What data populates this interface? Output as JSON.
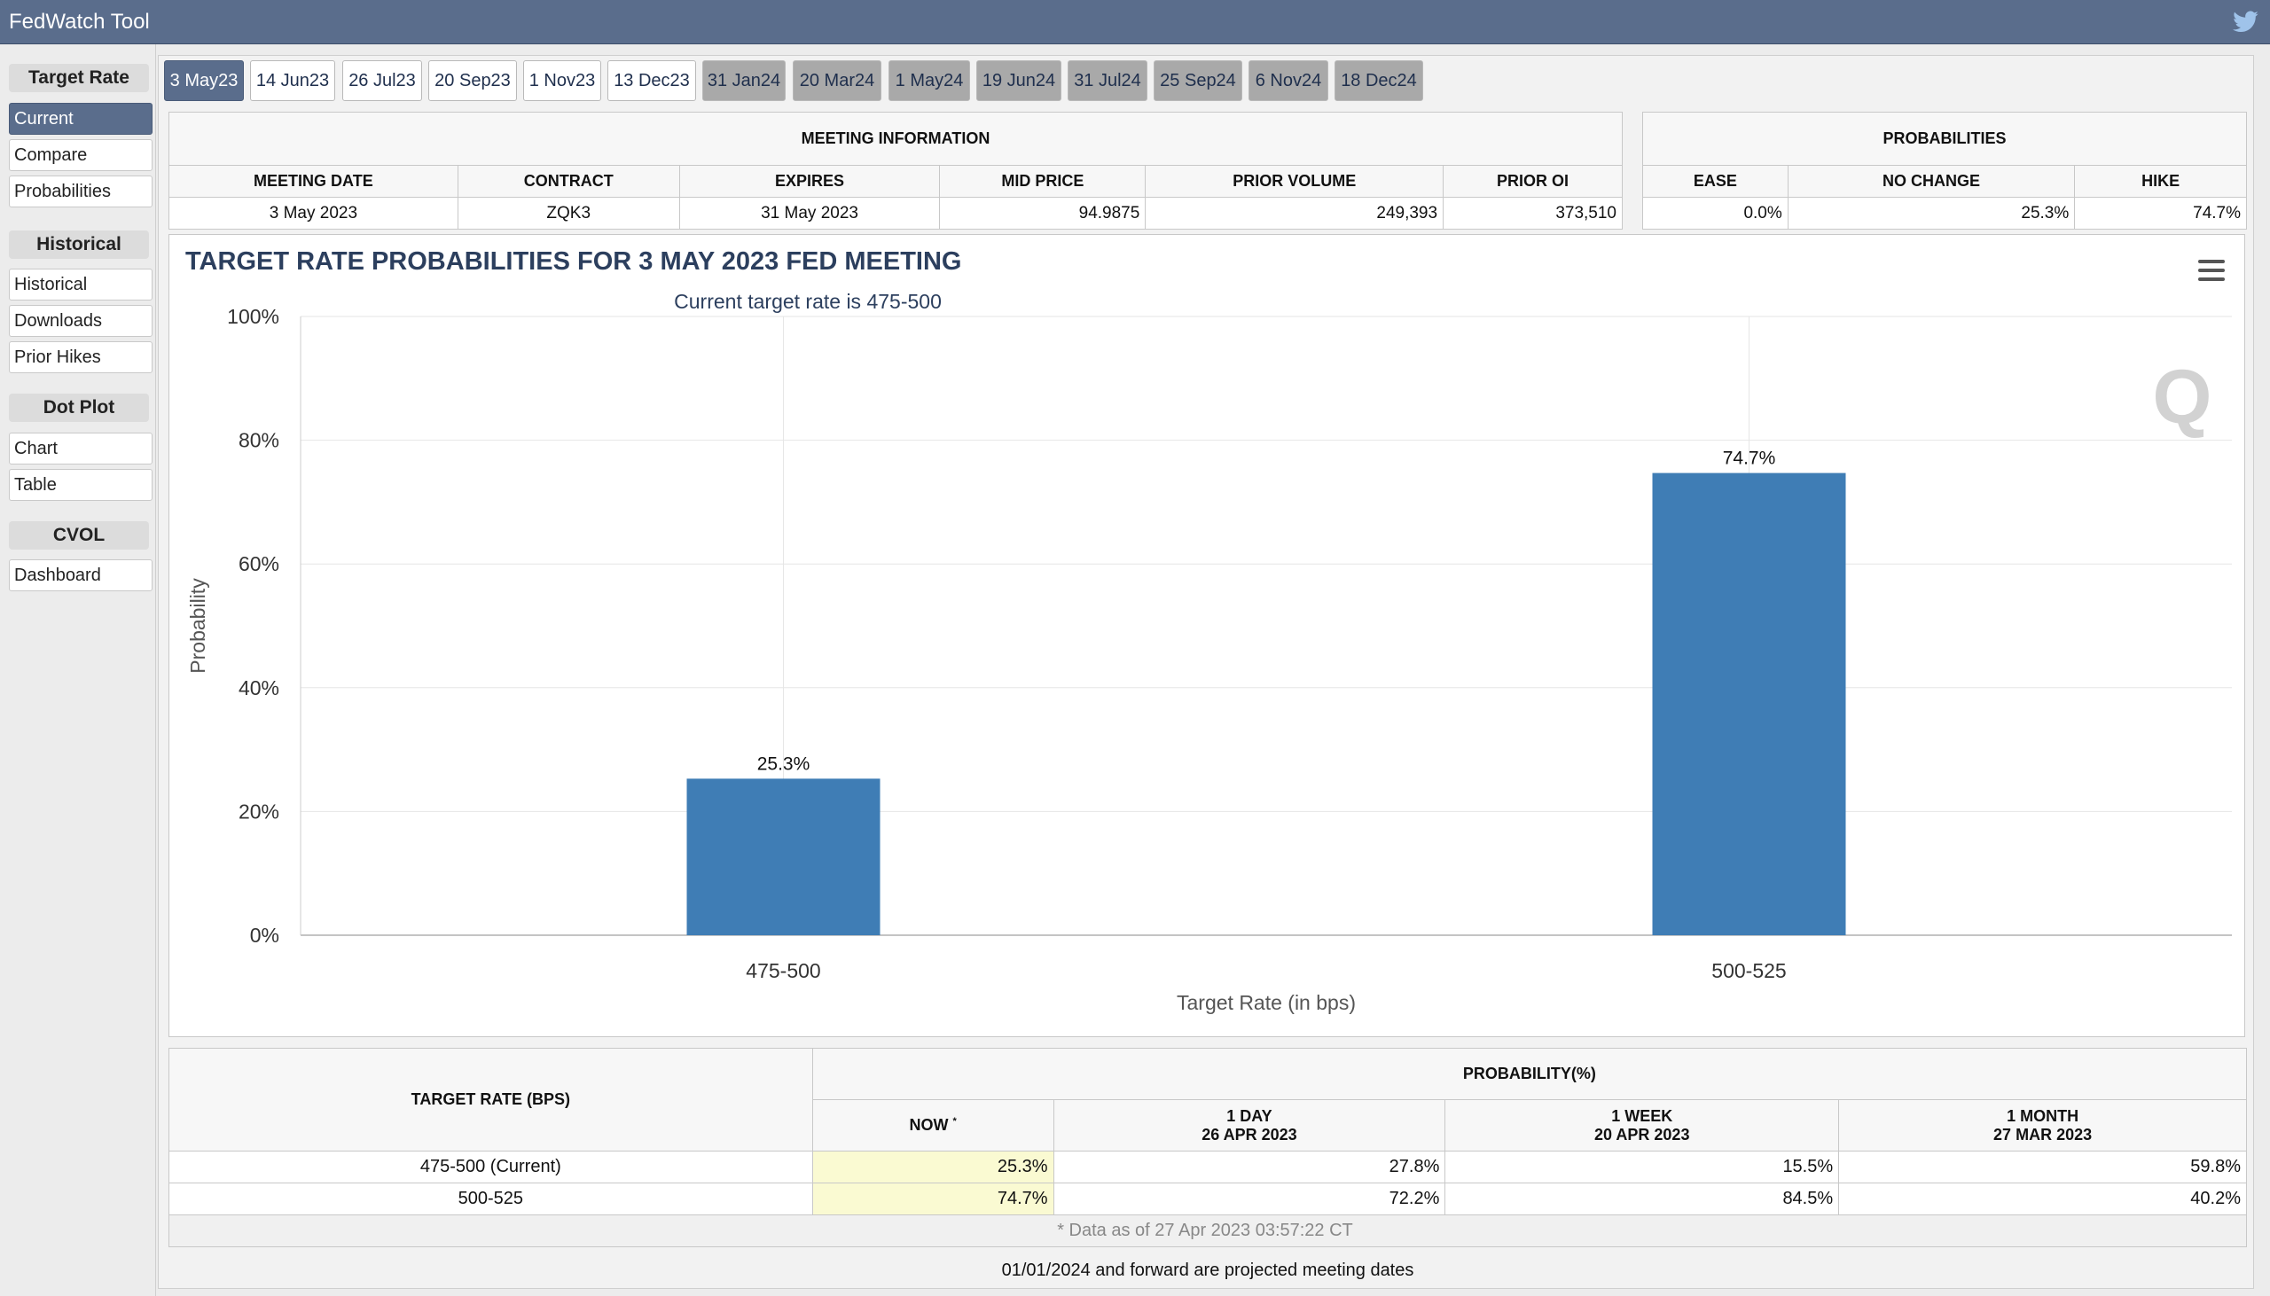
{
  "app": {
    "title": "FedWatch Tool",
    "twitter_icon": "twitter-bird-icon"
  },
  "sidebar": {
    "sections": [
      {
        "heading": "Target Rate",
        "items": [
          "Current",
          "Compare",
          "Probabilities"
        ]
      },
      {
        "heading": "Historical",
        "items": [
          "Historical",
          "Downloads",
          "Prior Hikes"
        ]
      },
      {
        "heading": "Dot Plot",
        "items": [
          "Chart",
          "Table"
        ]
      },
      {
        "heading": "CVOL",
        "items": [
          "Dashboard"
        ]
      }
    ],
    "active_item": "Current"
  },
  "tabs": [
    "3 May23",
    "14 Jun23",
    "26 Jul23",
    "20 Sep23",
    "1 Nov23",
    "13 Dec23",
    "31 Jan24",
    "20 Mar24",
    "1 May24",
    "19 Jun24",
    "31 Jul24",
    "25 Sep24",
    "6 Nov24",
    "18 Dec24"
  ],
  "active_tab": "3 May23",
  "meeting_info": {
    "heading": "MEETING INFORMATION",
    "columns": [
      "MEETING DATE",
      "CONTRACT",
      "EXPIRES",
      "MID PRICE",
      "PRIOR VOLUME",
      "PRIOR OI"
    ],
    "row": [
      "3 May 2023",
      "ZQK3",
      "31 May 2023",
      "94.9875",
      "249,393",
      "373,510"
    ]
  },
  "probabilities": {
    "heading": "PROBABILITIES",
    "columns": [
      "EASE",
      "NO CHANGE",
      "HIKE"
    ],
    "row": [
      "0.0%",
      "25.3%",
      "74.7%"
    ]
  },
  "chart": {
    "title": "TARGET RATE PROBABILITIES FOR 3 MAY 2023 FED MEETING",
    "subtitle": "Current target rate is 475-500",
    "menu_icon": "hamburger-menu-icon",
    "watermark": "Q"
  },
  "chart_data": {
    "type": "bar",
    "title": "TARGET RATE PROBABILITIES FOR 3 MAY 2023 FED MEETING",
    "subtitle": "Current target rate is 475-500",
    "categories": [
      "475-500",
      "500-525"
    ],
    "values": [
      25.3,
      74.7
    ],
    "data_labels": [
      "25.3%",
      "74.7%"
    ],
    "xlabel": "Target Rate (in bps)",
    "ylabel": "Probability",
    "ylim": [
      0,
      100
    ],
    "yticks": [
      "0%",
      "20%",
      "40%",
      "60%",
      "80%",
      "100%"
    ],
    "grid": true,
    "bar_color": "#3f7db5"
  },
  "bottom_table": {
    "rate_header": "TARGET RATE (BPS)",
    "prob_header": "PROBABILITY(%)",
    "now_header": "NOW",
    "now_marker": "*",
    "col_1day": [
      "1 DAY",
      "26 APR 2023"
    ],
    "col_1week": [
      "1 WEEK",
      "20 APR 2023"
    ],
    "col_1month": [
      "1 MONTH",
      "27 MAR 2023"
    ],
    "rows": [
      {
        "rate": "475-500 (Current)",
        "now": "25.3%",
        "day": "27.8%",
        "week": "15.5%",
        "month": "59.8%"
      },
      {
        "rate": "500-525",
        "now": "74.7%",
        "day": "72.2%",
        "week": "84.5%",
        "month": "40.2%"
      }
    ],
    "footnote": "* Data as of 27 Apr 2023 03:57:22 CT"
  },
  "projected_note": "01/01/2024 and forward are projected meeting dates"
}
